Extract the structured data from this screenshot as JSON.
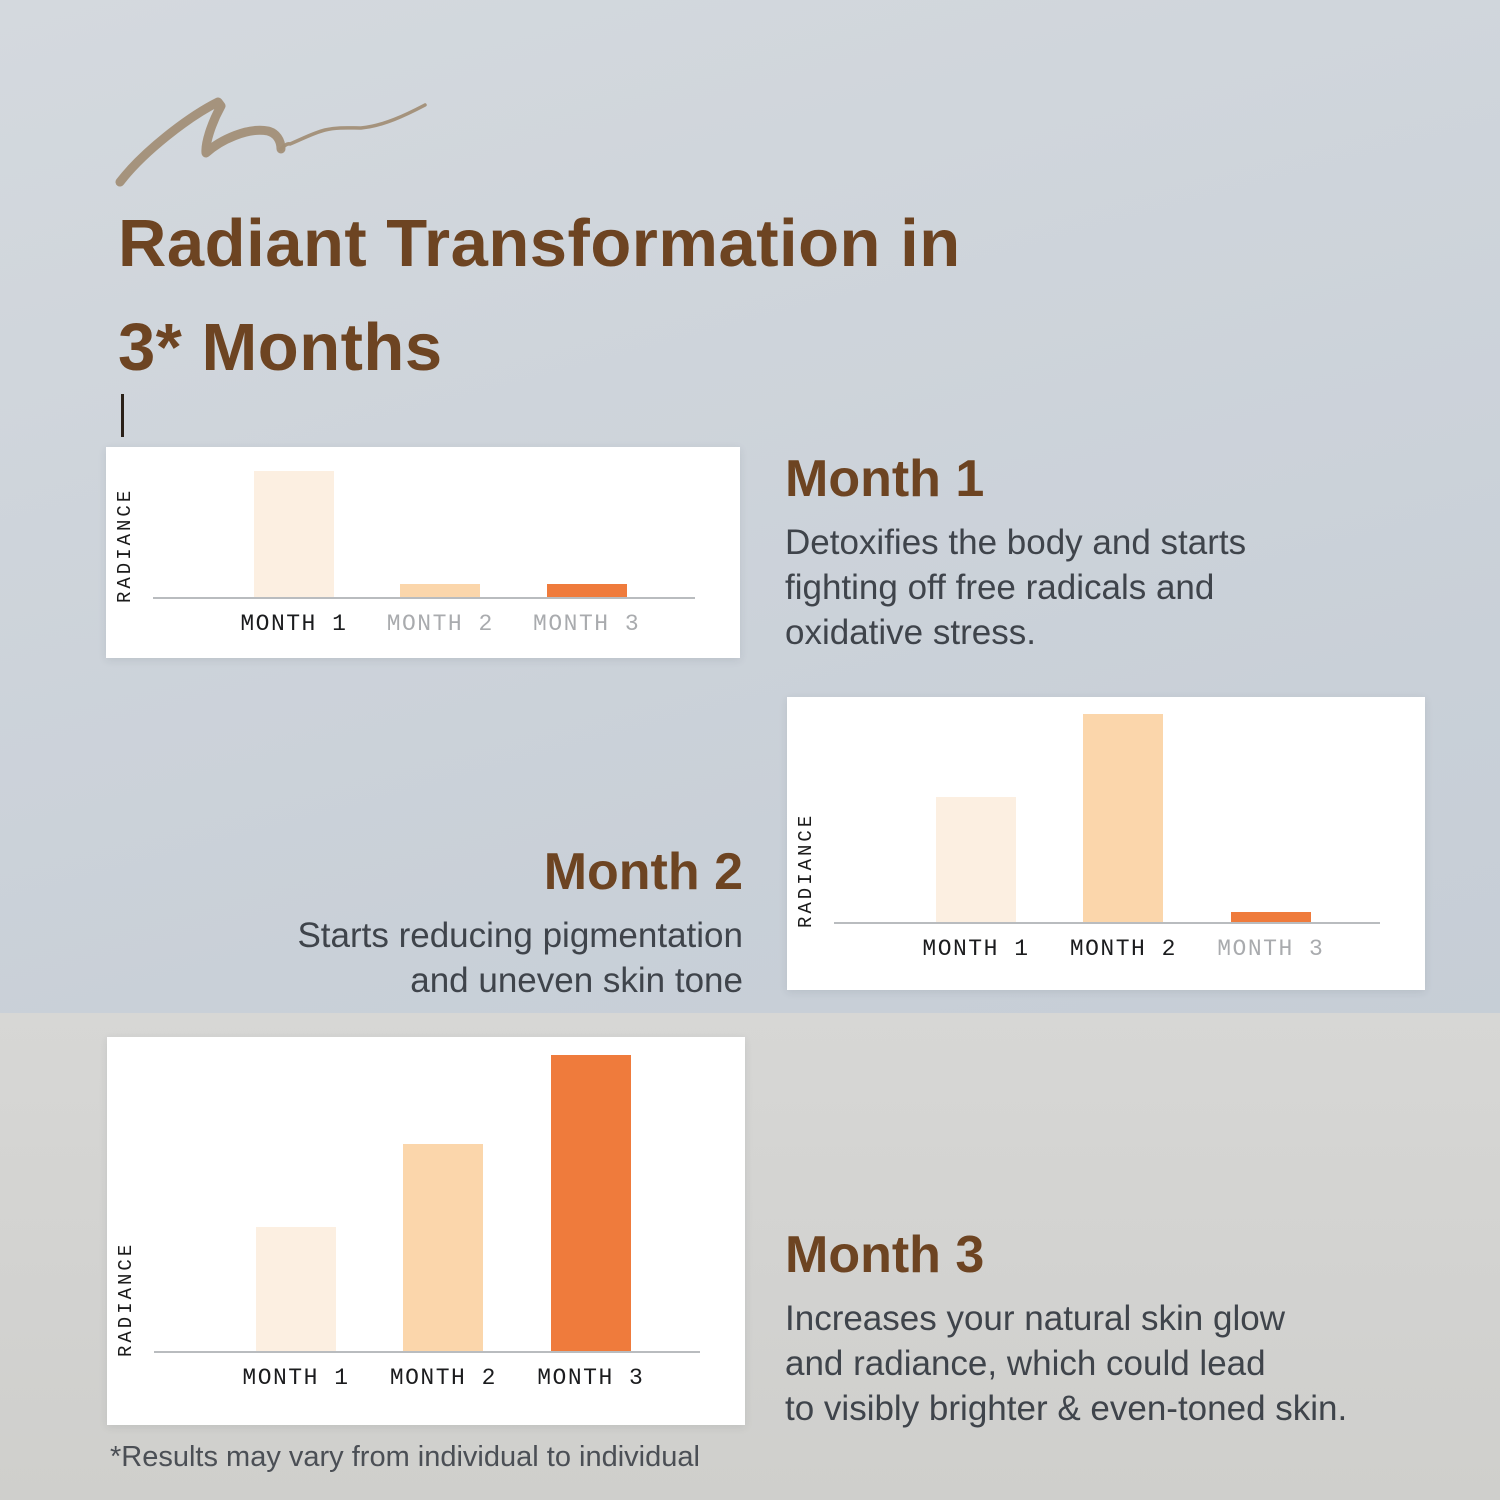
{
  "page": {
    "title_line1": "Radiant Transformation in",
    "title_line2": "3* Months",
    "footnote": "*Results may vary from individual to individual"
  },
  "sections": {
    "month1": {
      "heading": "Month 1",
      "body_lines": [
        "Detoxifies the body and starts",
        "fighting off free radicals and",
        "oxidative stress."
      ]
    },
    "month2": {
      "heading": "Month 2",
      "body_lines": [
        "Starts reducing pigmentation",
        "and uneven skin tone"
      ]
    },
    "month3": {
      "heading": "Month 3",
      "body_lines": [
        "Increases your natural skin glow",
        "and radiance, which could lead",
        "to visibly brighter & even-toned skin."
      ]
    }
  },
  "colors": {
    "title_brown": "#6d4422",
    "body_text": "#3f444b",
    "bar_cream": "#fcefe1",
    "bar_peach": "#fbd6ab",
    "bar_orange": "#ef7b3c",
    "label_dark": "#1b1c1e",
    "label_gray": "#a9abae",
    "bg_top": "#c9d0d8",
    "bg_bottom": "#d2d2d0",
    "scribble": "#a28f77"
  },
  "chart_data": [
    {
      "type": "bar",
      "title": "Month 1 radiance",
      "ylabel": "RADIANCE",
      "categories": [
        "MONTH 1",
        "MONTH 2",
        "MONTH 3"
      ],
      "values": [
        100,
        10,
        10
      ],
      "ylim": [
        0,
        100
      ],
      "grid": false,
      "bar_colors": [
        "#fcefe1",
        "#fbd6ab",
        "#ef7b3c"
      ],
      "active_labels": [
        true,
        false,
        false
      ]
    },
    {
      "type": "bar",
      "title": "Month 2 radiance",
      "ylabel": "RADIANCE",
      "categories": [
        "MONTH 1",
        "MONTH 2",
        "MONTH 3"
      ],
      "values": [
        60,
        100,
        5
      ],
      "ylim": [
        0,
        100
      ],
      "grid": false,
      "bar_colors": [
        "#fcefe1",
        "#fbd6ab",
        "#ef7b3c"
      ],
      "active_labels": [
        true,
        true,
        false
      ]
    },
    {
      "type": "bar",
      "title": "Month 3 radiance",
      "ylabel": "RADIANCE",
      "categories": [
        "MONTH 1",
        "MONTH 2",
        "MONTH 3"
      ],
      "values": [
        42,
        70,
        100
      ],
      "ylim": [
        0,
        100
      ],
      "grid": false,
      "bar_colors": [
        "#fcefe1",
        "#fbd6ab",
        "#ef7b3c"
      ],
      "active_labels": [
        true,
        true,
        true
      ]
    }
  ]
}
